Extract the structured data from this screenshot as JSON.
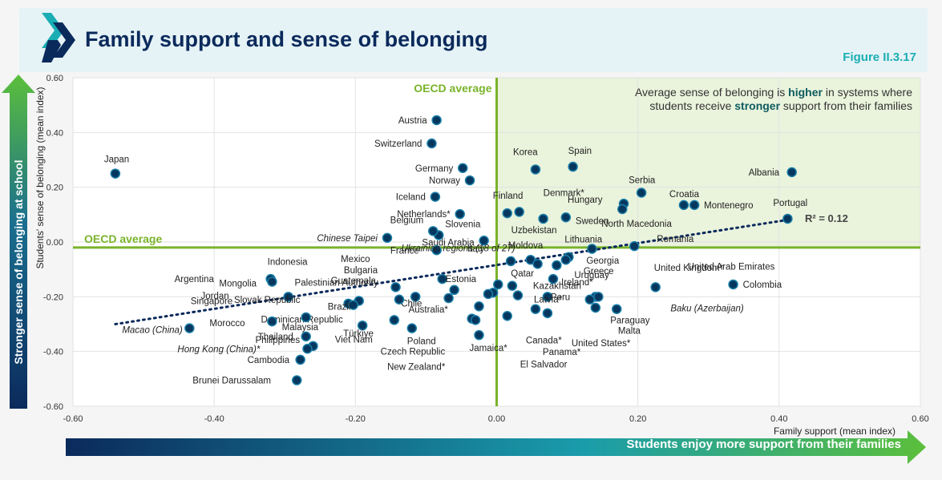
{
  "header": {
    "title": "Family support and sense of belonging",
    "figure_label": "Figure II.3.17"
  },
  "side_arrow_label": "Stronger sense of belonging at school",
  "bottom_arrow_label": "Students enjoy more support from their families",
  "colors": {
    "marker": "#06375e",
    "marker_edge": "#1a7fa8",
    "oecd_line": "#7ab32b",
    "quadrant_fill": "#eaf3dc",
    "title": "#0b2a5c",
    "accent": "#1aaeb4"
  },
  "chart_data": {
    "type": "scatter",
    "xlabel": "Family support (mean index)",
    "ylabel": "Students' sense of belonging (mean index)",
    "xlim": [
      -0.6,
      0.6
    ],
    "ylim": [
      -0.6,
      0.6
    ],
    "x_ticks": [
      "-0.60",
      "-0.40",
      "-0.20",
      "0.00",
      "0.20",
      "0.40",
      "0.60"
    ],
    "y_ticks": [
      "0.60",
      "0.40",
      "0.20",
      "0.00",
      "-0.20",
      "-0.40",
      "-0.60"
    ],
    "grid": true,
    "oecd_average_x": 0.0,
    "oecd_average_y": -0.02,
    "oecd_label_top": "OECD average",
    "oecd_label_left": "OECD average",
    "annotation": {
      "prefix": "Average sense of belonging is ",
      "higher": "higher",
      "mid": " in systems where",
      "line2_prefix": "students receive ",
      "stronger": "stronger",
      "suffix": " support from their families"
    },
    "r_squared_label": "R² = 0.12",
    "trendline": {
      "x1": -0.54,
      "y1": -0.3,
      "x2": 0.41,
      "y2": 0.08
    },
    "points": [
      {
        "name": "Japan",
        "x": -0.54,
        "y": 0.25
      },
      {
        "name": "Austria",
        "x": -0.085,
        "y": 0.445
      },
      {
        "name": "Switzerland",
        "x": -0.092,
        "y": 0.36
      },
      {
        "name": "Germany",
        "x": -0.048,
        "y": 0.27
      },
      {
        "name": "Norway",
        "x": -0.038,
        "y": 0.225
      },
      {
        "name": "Iceland",
        "x": -0.087,
        "y": 0.165
      },
      {
        "name": "Netherlands*",
        "x": -0.052,
        "y": 0.102
      },
      {
        "name": "Slovenia",
        "x": -0.082,
        "y": 0.025
      },
      {
        "name": "Belgium",
        "x": -0.09,
        "y": 0.04
      },
      {
        "name": "Chinese Taipei",
        "x": -0.155,
        "y": 0.015
      },
      {
        "name": "Saudi Arabia",
        "x": -0.018,
        "y": 0.005
      },
      {
        "name": "France",
        "x": -0.085,
        "y": -0.03
      },
      {
        "name": "Korea",
        "x": 0.055,
        "y": 0.265
      },
      {
        "name": "Spain",
        "x": 0.108,
        "y": 0.275
      },
      {
        "name": "Finland",
        "x": 0.015,
        "y": 0.105
      },
      {
        "name": "Denmark*",
        "x": 0.032,
        "y": 0.11
      },
      {
        "name": "Uzbekistan",
        "x": 0.066,
        "y": 0.085
      },
      {
        "name": "Sweden",
        "x": 0.098,
        "y": 0.09
      },
      {
        "name": "Hungary",
        "x": 0.18,
        "y": 0.14
      },
      {
        "name": "North Macedonia",
        "x": 0.178,
        "y": 0.12
      },
      {
        "name": "Serbia",
        "x": 0.205,
        "y": 0.18
      },
      {
        "name": "Croatia",
        "x": 0.265,
        "y": 0.135
      },
      {
        "name": "Montenegro",
        "x": 0.28,
        "y": 0.135
      },
      {
        "name": "Albania",
        "x": 0.418,
        "y": 0.255
      },
      {
        "name": "Portugal",
        "x": 0.412,
        "y": 0.085
      },
      {
        "name": "Lithuania",
        "x": 0.135,
        "y": -0.025
      },
      {
        "name": "Romania",
        "x": 0.195,
        "y": -0.015
      },
      {
        "name": "Moldova",
        "x": 0.048,
        "y": -0.065
      },
      {
        "name": "Georgia",
        "x": 0.102,
        "y": -0.055
      },
      {
        "name": "Greece",
        "x": 0.098,
        "y": -0.065
      },
      {
        "name": "Uruguay",
        "x": 0.085,
        "y": -0.085
      },
      {
        "name": "Italy",
        "x": 0.02,
        "y": -0.07
      },
      {
        "name": "Ukrainian regions (18 of 27)",
        "x": 0.058,
        "y": -0.08
      },
      {
        "name": "Mexico",
        "x": -0.005,
        "y": -0.185
      },
      {
        "name": "Bulgaria",
        "x": -0.012,
        "y": -0.19
      },
      {
        "name": "Estonia",
        "x": -0.077,
        "y": -0.135
      },
      {
        "name": "Guatemala",
        "x": -0.06,
        "y": -0.175
      },
      {
        "name": "Palestinian Authority",
        "x": -0.143,
        "y": -0.165
      },
      {
        "name": "Qatar",
        "x": 0.002,
        "y": -0.155
      },
      {
        "name": "Kazakhstan",
        "x": 0.022,
        "y": -0.16
      },
      {
        "name": "Ireland*",
        "x": 0.08,
        "y": -0.135
      },
      {
        "name": "Peru",
        "x": 0.072,
        "y": -0.2
      },
      {
        "name": "Latvia*",
        "x": 0.055,
        "y": -0.245
      },
      {
        "name": "Chile",
        "x": -0.115,
        "y": -0.2
      },
      {
        "name": "Australia*",
        "x": -0.068,
        "y": -0.205
      },
      {
        "name": "Argentina",
        "x": -0.32,
        "y": -0.135
      },
      {
        "name": "Mongolia",
        "x": -0.318,
        "y": -0.145
      },
      {
        "name": "Indonesia",
        "x": -0.295,
        "y": -0.2
      },
      {
        "name": "Slovak Republic",
        "x": -0.138,
        "y": -0.21
      },
      {
        "name": "Jordan",
        "x": -0.21,
        "y": -0.225
      },
      {
        "name": "Singapore",
        "x": -0.195,
        "y": -0.215
      },
      {
        "name": "Brazil",
        "x": -0.203,
        "y": -0.23
      },
      {
        "name": "Dominican Republic",
        "x": -0.025,
        "y": -0.235
      },
      {
        "name": "Macao (China)",
        "x": -0.435,
        "y": -0.315
      },
      {
        "name": "Morocco",
        "x": -0.318,
        "y": -0.29
      },
      {
        "name": "Malaysia",
        "x": -0.27,
        "y": -0.275
      },
      {
        "name": "Thailand",
        "x": -0.27,
        "y": -0.345
      },
      {
        "name": "Philippines",
        "x": -0.26,
        "y": -0.38
      },
      {
        "name": "Hong Kong (China)*",
        "x": -0.268,
        "y": -0.39
      },
      {
        "name": "Cambodia",
        "x": -0.278,
        "y": -0.43
      },
      {
        "name": "Brunei Darussalam",
        "x": -0.283,
        "y": -0.505
      },
      {
        "name": "Türkiye",
        "x": -0.19,
        "y": -0.305
      },
      {
        "name": "Viet Nam",
        "x": -0.145,
        "y": -0.285
      },
      {
        "name": "Poland",
        "x": -0.12,
        "y": -0.315
      },
      {
        "name": "Czech Republic",
        "x": -0.035,
        "y": -0.28
      },
      {
        "name": "New Zealand*",
        "x": -0.03,
        "y": -0.285
      },
      {
        "name": "Jamaica*",
        "x": -0.025,
        "y": -0.34
      },
      {
        "name": "El Salvador",
        "x": 0.015,
        "y": -0.27
      },
      {
        "name": "Canada*",
        "x": 0.03,
        "y": -0.195
      },
      {
        "name": "Panama*",
        "x": 0.072,
        "y": -0.26
      },
      {
        "name": "United States*",
        "x": 0.14,
        "y": -0.24
      },
      {
        "name": "Malta",
        "x": 0.14,
        "y": -0.2
      },
      {
        "name": "Paraguay",
        "x": 0.17,
        "y": -0.245
      },
      {
        "name": "United Kingdom*",
        "x": 0.132,
        "y": -0.21
      },
      {
        "name": "United Arab Emirates",
        "x": 0.225,
        "y": -0.165
      },
      {
        "name": "Colombia",
        "x": 0.335,
        "y": -0.155
      },
      {
        "name": "Baku (Azerbaijan)",
        "x": 0.144,
        "y": -0.2
      }
    ]
  }
}
